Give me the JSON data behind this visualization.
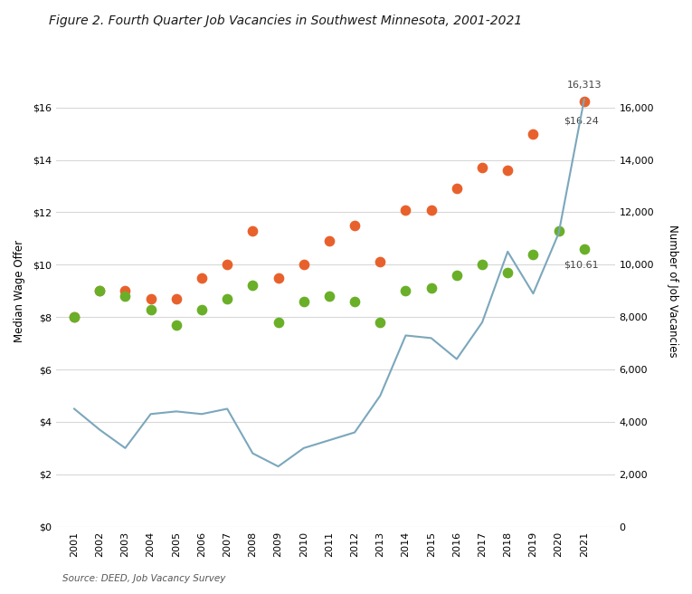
{
  "title": "Figure 2. Fourth Quarter Job Vacancies in Southwest Minnesota, 2001-2021",
  "source": "Source: DEED, Job Vacancy Survey",
  "years": [
    2001,
    2002,
    2003,
    2004,
    2005,
    2006,
    2007,
    2008,
    2009,
    2010,
    2011,
    2012,
    2013,
    2014,
    2015,
    2016,
    2017,
    2018,
    2019,
    2020,
    2021
  ],
  "job_vacancies": [
    4500,
    3700,
    3000,
    4300,
    4400,
    4300,
    4500,
    2800,
    2300,
    3000,
    3300,
    3600,
    5000,
    7300,
    7200,
    6400,
    7800,
    10500,
    8900,
    11200,
    16313
  ],
  "orange_dots": [
    8.0,
    9.0,
    9.0,
    8.7,
    8.7,
    9.5,
    10.0,
    11.3,
    9.5,
    10.0,
    10.9,
    11.5,
    10.1,
    12.1,
    12.1,
    12.9,
    13.7,
    13.6,
    15.0,
    null,
    16.24
  ],
  "green_dots": [
    8.0,
    9.0,
    8.8,
    8.3,
    7.7,
    8.3,
    8.7,
    9.2,
    7.8,
    8.6,
    8.8,
    8.6,
    7.8,
    9.0,
    9.1,
    9.6,
    10.0,
    9.7,
    10.4,
    11.3,
    10.61
  ],
  "ylabel_left": "Median Wage Offer",
  "ylabel_right": "Number of Job Vacancies",
  "ylim_left": [
    0,
    18
  ],
  "ylim_right": [
    0,
    18000
  ],
  "yticks_left": [
    0,
    2,
    4,
    6,
    8,
    10,
    12,
    14,
    16
  ],
  "yticks_right": [
    0,
    2000,
    4000,
    6000,
    8000,
    10000,
    12000,
    14000,
    16000
  ],
  "line_color": "#7BA7BC",
  "orange_color": "#E8612C",
  "green_color": "#6AAF28",
  "annotation_vacancies": "16,313",
  "annotation_orange": "$16.24",
  "annotation_green": "$10.61",
  "background_color": "#ffffff",
  "grid_color": "#d8d8d8",
  "title_fontsize": 10,
  "axis_fontsize": 8.5,
  "tick_fontsize": 8
}
